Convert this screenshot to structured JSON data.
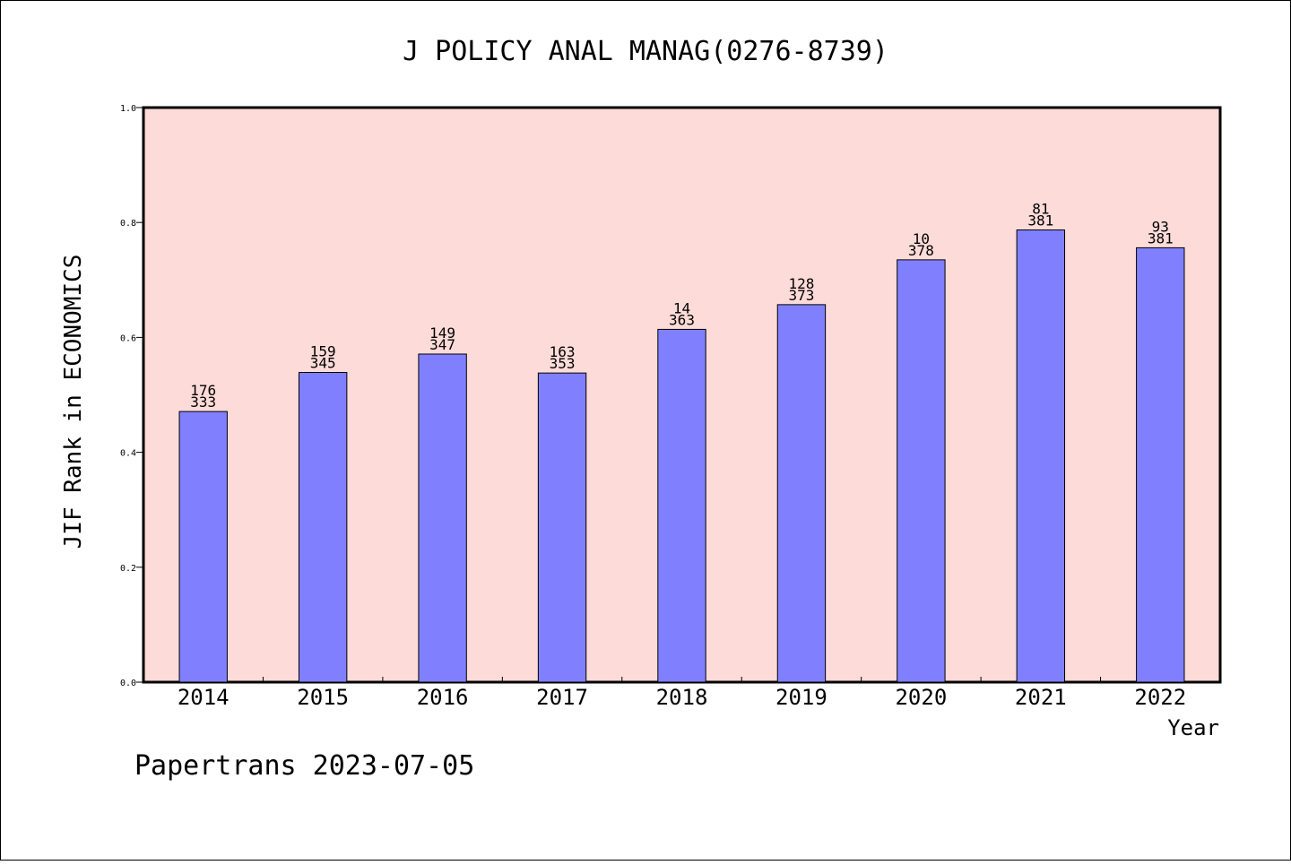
{
  "chart_data": {
    "type": "bar",
    "title": "J POLICY ANAL MANAG(0276-8739)",
    "xlabel": "Year",
    "ylabel": "JIF Rank in ECONOMICS",
    "ylim": [
      0,
      1.0
    ],
    "yticks": [
      "0.0",
      "0.2",
      "0.4",
      "0.6",
      "0.8",
      "1.0"
    ],
    "ytick_values": [
      0,
      0.2,
      0.4,
      0.6,
      0.8,
      1.0
    ],
    "categories": [
      "2014",
      "2015",
      "2016",
      "2017",
      "2018",
      "2019",
      "2020",
      "2021",
      "2022"
    ],
    "values": [
      0.471,
      0.539,
      0.571,
      0.538,
      0.614,
      0.657,
      0.735,
      0.787,
      0.756
    ],
    "rank": [
      "176",
      "159",
      "149",
      "163",
      "14",
      "128",
      "10",
      "81",
      "93"
    ],
    "total": [
      "333",
      "345",
      "347",
      "353",
      "363",
      "373",
      "378",
      "381",
      "381"
    ],
    "grid": false,
    "colors": {
      "plot_background": "#FDDBD8",
      "bar_fill": "#8080FF",
      "bar_stroke": "#000000",
      "axis": "#000000"
    }
  },
  "footer": "Papertrans 2023-07-05"
}
